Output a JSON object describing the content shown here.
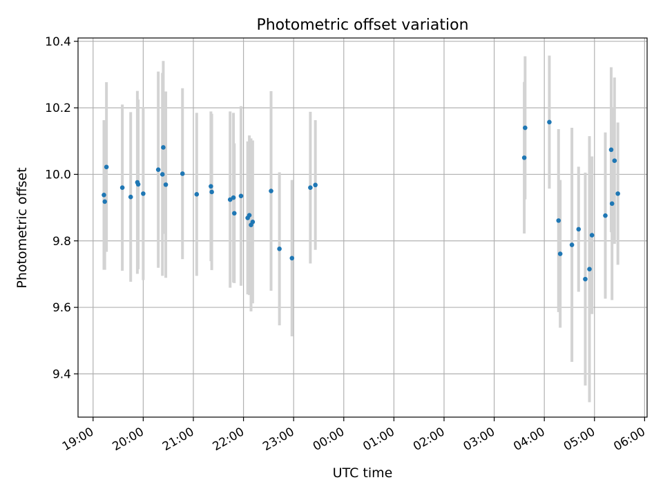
{
  "chart_data": {
    "type": "scatter",
    "title": "Photometric offset variation",
    "xlabel": "UTC time",
    "ylabel": "Photometric offset",
    "x_is_time": true,
    "x_tick_labels": [
      "19:00",
      "20:00",
      "21:00",
      "22:00",
      "23:00",
      "00:00",
      "01:00",
      "02:00",
      "03:00",
      "04:00",
      "05:00",
      "06:00"
    ],
    "x_tick_hours": [
      19,
      20,
      21,
      22,
      23,
      24,
      25,
      26,
      27,
      28,
      29,
      30
    ],
    "xlim_hours": [
      18.7,
      30.05
    ],
    "ylim": [
      9.27,
      10.41
    ],
    "y_ticks": [
      9.4,
      9.6,
      9.8,
      10.0,
      10.2,
      10.4
    ],
    "y_tick_labels": [
      "9.4",
      "9.6",
      "9.8",
      "10.0",
      "10.2",
      "10.4"
    ],
    "grid": true,
    "colors": {
      "point": "#1f77b4",
      "errorbar": "#d3d3d3",
      "grid": "#b0b0b0"
    },
    "series": [
      {
        "x_time": [
          "19:13",
          "19:14",
          "19:16",
          "19:35",
          "19:45",
          "19:53",
          "19:54",
          "20:00",
          "20:18",
          "20:23",
          "20:24",
          "20:27",
          "20:47",
          "21:04",
          "21:21",
          "21:22",
          "21:44",
          "21:48",
          "21:49",
          "21:57",
          "22:05",
          "22:07",
          "22:09",
          "22:11",
          "22:33",
          "22:43",
          "22:58",
          "23:20",
          "23:26",
          "03:36",
          "03:37",
          "04:06",
          "04:17",
          "04:19",
          "04:33",
          "04:41",
          "04:49",
          "04:54",
          "04:57",
          "05:13",
          "05:20",
          "05:21",
          "05:24",
          "05:28"
        ],
        "y": [
          9.938,
          9.918,
          10.022,
          9.96,
          9.932,
          9.976,
          9.97,
          9.942,
          10.014,
          10.0,
          10.081,
          9.969,
          10.002,
          9.94,
          9.964,
          9.947,
          9.924,
          9.93,
          9.883,
          9.935,
          9.869,
          9.877,
          9.848,
          9.857,
          9.95,
          9.776,
          9.748,
          9.96,
          9.968,
          10.05,
          10.14,
          10.157,
          9.861,
          9.761,
          9.788,
          9.835,
          9.685,
          9.715,
          9.817,
          9.876,
          10.074,
          9.912,
          10.041,
          9.942
        ],
        "yerr": [
          0.225,
          0.205,
          0.255,
          0.25,
          0.255,
          0.275,
          0.255,
          0.26,
          0.295,
          0.305,
          0.26,
          0.28,
          0.257,
          0.245,
          0.225,
          0.235,
          0.265,
          0.255,
          0.21,
          0.27,
          0.23,
          0.24,
          0.26,
          0.245,
          0.3,
          0.23,
          0.235,
          0.228,
          0.195,
          0.228,
          0.215,
          0.2,
          0.275,
          0.222,
          0.352,
          0.188,
          0.32,
          0.4,
          0.237,
          0.25,
          0.248,
          0.29,
          0.25,
          0.214
        ]
      }
    ]
  }
}
